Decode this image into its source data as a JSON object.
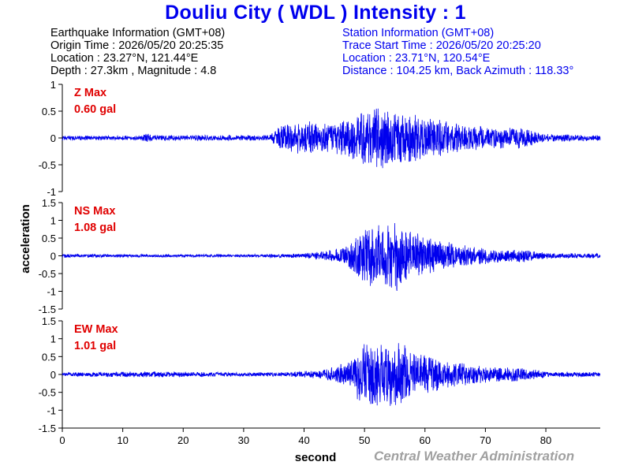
{
  "title": "Douliu City ( WDL ) Intensity : 1",
  "earthquake_info": {
    "header": "Earthquake Information  (GMT+08)",
    "origin_time": "Origin Time : 2026/05/20 20:25:35",
    "location": "Location : 23.27°N, 121.44°E",
    "depth_magnitude": "Depth : 27.3km , Magnitude : 4.8"
  },
  "station_info": {
    "header": "Station Information  (GMT+08)",
    "trace_start": "Trace Start Time : 2026/05/20 20:25:20",
    "location": "Location : 23.71°N, 120.54°E",
    "distance": "Distance : 104.25 km, Back Azimuth : 118.33°"
  },
  "watermark": "Central Weather Administration",
  "colors": {
    "trace": "#0000ee",
    "title": "#0000ee",
    "max_label": "#e00000",
    "watermark": "#a0a0a0"
  },
  "chart_data": {
    "type": "line",
    "xlabel": "second",
    "ylabel": "acceleration",
    "xlim": [
      0,
      89
    ],
    "xticks": [
      0,
      10,
      20,
      30,
      40,
      50,
      60,
      70,
      80
    ],
    "panels": [
      {
        "name": "Z",
        "max_label": "Z Max",
        "max_value": "0.60 gal",
        "ylim": [
          -1,
          1
        ],
        "yticks": [
          -1,
          -0.5,
          0,
          0.5,
          1
        ],
        "envelope": [
          [
            0,
            0.04
          ],
          [
            13,
            0.04
          ],
          [
            14,
            0.1
          ],
          [
            15,
            0.05
          ],
          [
            34,
            0.05
          ],
          [
            36,
            0.2
          ],
          [
            40,
            0.3
          ],
          [
            44,
            0.25
          ],
          [
            47,
            0.32
          ],
          [
            49,
            0.45
          ],
          [
            51,
            0.5
          ],
          [
            53,
            0.55
          ],
          [
            55,
            0.45
          ],
          [
            58,
            0.42
          ],
          [
            62,
            0.32
          ],
          [
            68,
            0.22
          ],
          [
            72,
            0.18
          ],
          [
            76,
            0.2
          ],
          [
            80,
            0.07
          ],
          [
            89,
            0.05
          ]
        ]
      },
      {
        "name": "NS",
        "max_label": "NS Max",
        "max_value": "1.08 gal",
        "ylim": [
          -1.5,
          1.5
        ],
        "yticks": [
          -1.5,
          -1,
          -0.5,
          0,
          0.5,
          1,
          1.5
        ],
        "envelope": [
          [
            0,
            0.05
          ],
          [
            10,
            0.04
          ],
          [
            30,
            0.04
          ],
          [
            40,
            0.06
          ],
          [
            44,
            0.14
          ],
          [
            47,
            0.25
          ],
          [
            49,
            0.55
          ],
          [
            51,
            0.85
          ],
          [
            53,
            0.75
          ],
          [
            55,
            1.0
          ],
          [
            57,
            0.7
          ],
          [
            60,
            0.5
          ],
          [
            64,
            0.35
          ],
          [
            68,
            0.25
          ],
          [
            72,
            0.18
          ],
          [
            76,
            0.18
          ],
          [
            80,
            0.08
          ],
          [
            89,
            0.06
          ]
        ]
      },
      {
        "name": "EW",
        "max_label": "EW Max",
        "max_value": "1.01 gal",
        "ylim": [
          -1.5,
          1.5
        ],
        "yticks": [
          -1.5,
          -1,
          -0.5,
          0,
          0.5,
          1,
          1.5
        ],
        "envelope": [
          [
            0,
            0.05
          ],
          [
            14,
            0.08
          ],
          [
            30,
            0.05
          ],
          [
            37,
            0.06
          ],
          [
            43,
            0.12
          ],
          [
            47,
            0.3
          ],
          [
            49,
            0.7
          ],
          [
            51,
            0.95
          ],
          [
            53,
            0.8
          ],
          [
            55,
            0.85
          ],
          [
            57,
            0.75
          ],
          [
            60,
            0.5
          ],
          [
            64,
            0.35
          ],
          [
            68,
            0.25
          ],
          [
            72,
            0.2
          ],
          [
            76,
            0.18
          ],
          [
            80,
            0.08
          ],
          [
            89,
            0.06
          ]
        ]
      }
    ]
  }
}
